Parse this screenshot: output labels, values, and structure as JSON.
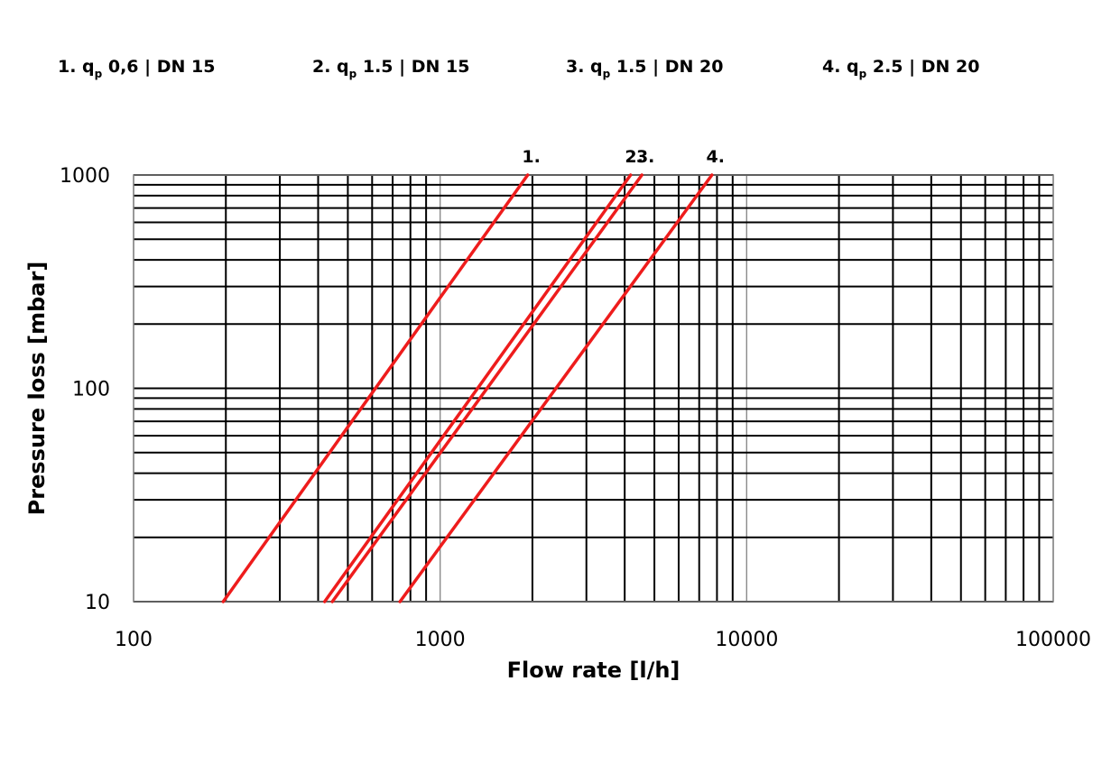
{
  "chart_data": {
    "type": "line",
    "x_scale": "log",
    "y_scale": "log",
    "xlim": [
      100,
      100000
    ],
    "ylim": [
      10,
      1000
    ],
    "xlabel": "Flow rate [l/h]",
    "ylabel": "Pressure loss [mbar]",
    "x_ticks": [
      {
        "value": 100,
        "label": "100"
      },
      {
        "value": 1000,
        "label": "1000"
      },
      {
        "value": 10000,
        "label": "10000"
      },
      {
        "value": 100000,
        "label": "100000"
      }
    ],
    "y_ticks": [
      {
        "value": 10,
        "label": "10"
      },
      {
        "value": 100,
        "label": "100"
      },
      {
        "value": 1000,
        "label": "1000"
      }
    ],
    "grid": true,
    "line_color": "#ee1c1c",
    "legend": [
      {
        "prefix": "1. q",
        "sub": "p",
        "suffix": " 0,6 | DN 15"
      },
      {
        "prefix": "2. q",
        "sub": "p",
        "suffix": " 1.5 | DN 15"
      },
      {
        "prefix": "3. q",
        "sub": "p",
        "suffix": " 1.5 | DN 20"
      },
      {
        "prefix": "4. q",
        "sub": "p",
        "suffix": " 2.5 | DN 20"
      }
    ],
    "series": [
      {
        "label": "1.",
        "points": [
          [
            196,
            10
          ],
          [
            1930,
            1000
          ]
        ]
      },
      {
        "label": "2.",
        "points": [
          [
            420,
            10
          ],
          [
            4180,
            1000
          ]
        ]
      },
      {
        "label": "3.",
        "points": [
          [
            445,
            10
          ],
          [
            4550,
            1000
          ]
        ]
      },
      {
        "label": "4.",
        "points": [
          [
            740,
            10
          ],
          [
            7700,
            1000
          ]
        ]
      }
    ]
  }
}
